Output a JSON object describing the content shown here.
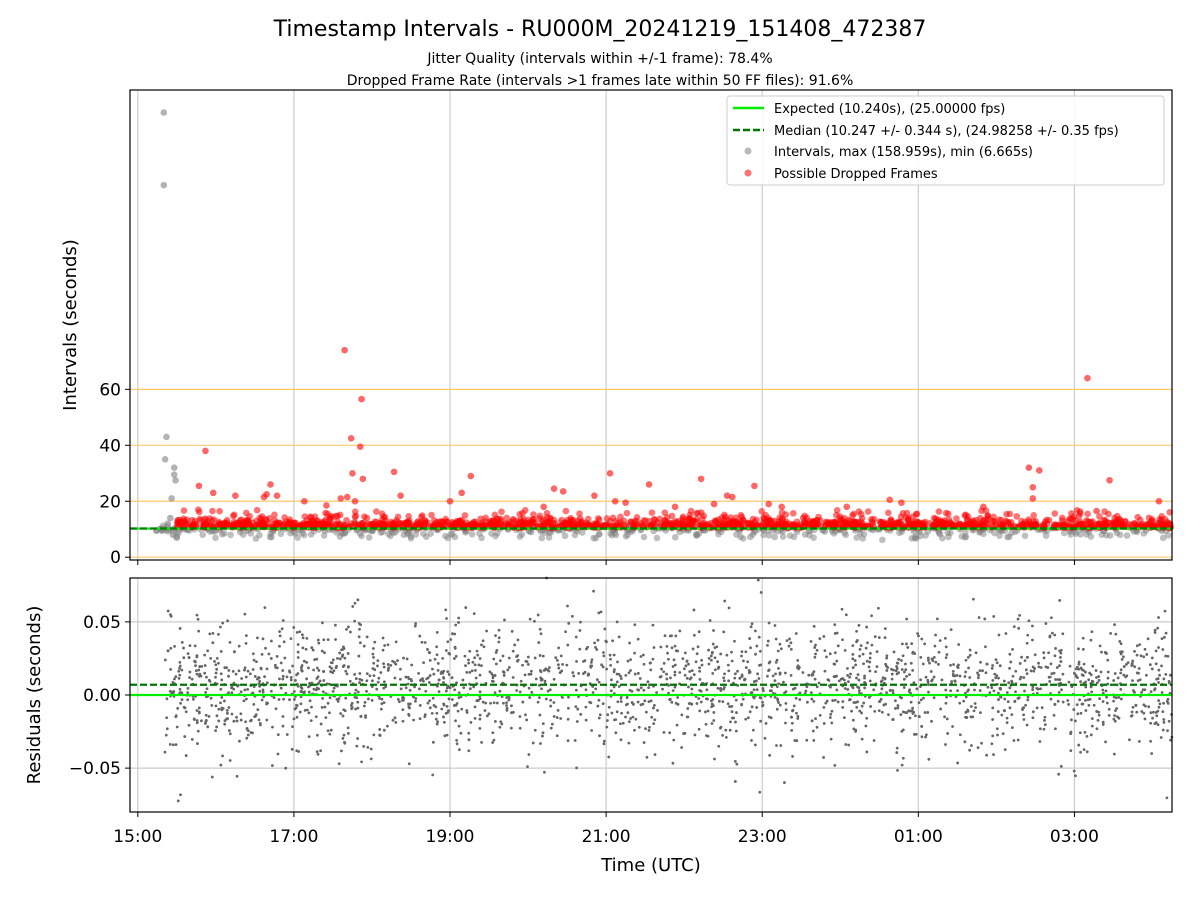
{
  "title": "Timestamp Intervals - RU000M_20241219_151408_472387",
  "subtitle1": "Jitter Quality (intervals within +/-1 frame): 78.4%",
  "subtitle2": "Dropped Frame Rate (intervals >1 frames late within 50 FF files): 91.6%",
  "colors": {
    "expected": "#00ee00",
    "median": "#007700",
    "intervals": "#808080",
    "dropped": "#ff0000",
    "ref_lines": "#ffc966",
    "residuals": "#666666",
    "grid": "#cccccc"
  },
  "chart_data": [
    {
      "type": "scatter",
      "panel": "top",
      "ylabel": "Intervals (seconds)",
      "xlabel": "",
      "x_axis": "time (UTC)",
      "xlim": [
        "2024-12-19 14:54",
        "2024-12-20 04:15"
      ],
      "ylim": [
        -1,
        167
      ],
      "yticks": [
        0,
        20,
        40,
        60
      ],
      "xticks": [
        "15:00",
        "17:00",
        "19:00",
        "21:00",
        "23:00",
        "01:00",
        "03:00"
      ],
      "horizontal_reference_lines": [
        0,
        20,
        40,
        60
      ],
      "grid": "vertical",
      "legend_position": "top-right",
      "legend": [
        "Expected (10.240s), (25.00000 fps)",
        "Median (10.247 +/- 0.344 s), (24.98258 +/- 0.35 fps)",
        "Intervals, max (158.959s), min (6.665s)",
        "Possible Dropped Frames"
      ],
      "series": [
        {
          "name": "Expected (10.240s), (25.00000 fps)",
          "kind": "line",
          "style": "solid",
          "y": 10.24
        },
        {
          "name": "Median (10.247 +/- 0.344 s), (24.98258 +/- 0.35 fps)",
          "kind": "line",
          "style": "dashed",
          "y": 10.247
        },
        {
          "name": "Intervals, max (158.959s), min (6.665s)",
          "kind": "scatter",
          "summary": {
            "x_range": [
              "15:14",
              "04:15"
            ],
            "typical_y": 10.24,
            "min": 6.665,
            "max": 158.959
          },
          "notable_points": [
            {
              "x": "15:20",
              "y": 158.959
            },
            {
              "x": "15:20",
              "y": 133
            },
            {
              "x": "15:22",
              "y": 43
            },
            {
              "x": "15:21",
              "y": 35
            },
            {
              "x": "15:28",
              "y": 32
            },
            {
              "x": "15:28",
              "y": 29.5
            },
            {
              "x": "15:29",
              "y": 27.5
            },
            {
              "x": "15:26",
              "y": 21
            },
            {
              "x": "15:25",
              "y": 14
            },
            {
              "x": "15:23",
              "y": 12
            },
            {
              "x": "15:18",
              "y": 10.2
            },
            {
              "x": "15:27",
              "y": 8
            },
            {
              "x": "15:30",
              "y": 7
            }
          ]
        },
        {
          "name": "Possible Dropped Frames",
          "kind": "scatter",
          "summary": {
            "x_range": [
              "15:30",
              "04:15"
            ],
            "typical_y": 10.5
          },
          "notable_points": [
            {
              "x": "17:39",
              "y": 74
            },
            {
              "x": "03:10",
              "y": 64
            },
            {
              "x": "17:52",
              "y": 56.5
            },
            {
              "x": "17:44",
              "y": 42.5
            },
            {
              "x": "17:51",
              "y": 39.5
            },
            {
              "x": "15:52",
              "y": 38
            },
            {
              "x": "02:25",
              "y": 32
            },
            {
              "x": "02:33",
              "y": 31
            },
            {
              "x": "18:17",
              "y": 30.5
            },
            {
              "x": "17:45",
              "y": 30
            },
            {
              "x": "21:03",
              "y": 30
            },
            {
              "x": "19:16",
              "y": 29
            },
            {
              "x": "17:53",
              "y": 28
            },
            {
              "x": "22:13",
              "y": 28
            },
            {
              "x": "03:27",
              "y": 27.5
            },
            {
              "x": "16:42",
              "y": 26
            },
            {
              "x": "21:33",
              "y": 26
            },
            {
              "x": "02:28",
              "y": 25
            },
            {
              "x": "22:54",
              "y": 25.5
            },
            {
              "x": "15:47",
              "y": 25.5
            },
            {
              "x": "20:20",
              "y": 24.5
            },
            {
              "x": "20:27",
              "y": 23.5
            },
            {
              "x": "15:58",
              "y": 23
            },
            {
              "x": "19:09",
              "y": 23
            },
            {
              "x": "16:39",
              "y": 22.5
            },
            {
              "x": "16:47",
              "y": 22
            },
            {
              "x": "22:33",
              "y": 22
            },
            {
              "x": "16:15",
              "y": 22
            },
            {
              "x": "16:37",
              "y": 21.5
            },
            {
              "x": "20:51",
              "y": 22
            },
            {
              "x": "22:37",
              "y": 21.5
            },
            {
              "x": "18:22",
              "y": 22
            },
            {
              "x": "17:41",
              "y": 21.5
            },
            {
              "x": "00:38",
              "y": 20.5
            },
            {
              "x": "04:05",
              "y": 20
            },
            {
              "x": "19:00",
              "y": 20
            },
            {
              "x": "02:28",
              "y": 21
            },
            {
              "x": "21:07",
              "y": 20
            },
            {
              "x": "17:47",
              "y": 20
            },
            {
              "x": "17:36",
              "y": 21
            },
            {
              "x": "21:15",
              "y": 19.5
            },
            {
              "x": "23:05",
              "y": 19
            },
            {
              "x": "00:47",
              "y": 19.5
            },
            {
              "x": "17:08",
              "y": 20
            },
            {
              "x": "22:23",
              "y": 19
            },
            {
              "x": "21:53",
              "y": 18
            },
            {
              "x": "01:50",
              "y": 18
            },
            {
              "x": "20:12",
              "y": 18
            },
            {
              "x": "23:15",
              "y": 18
            },
            {
              "x": "17:25",
              "y": 18.5
            },
            {
              "x": "00:05",
              "y": 18
            },
            {
              "x": "03:17",
              "y": 16.5
            }
          ]
        }
      ]
    },
    {
      "type": "scatter",
      "panel": "bottom",
      "ylabel": "Residuals (seconds)",
      "xlabel": "Time (UTC)",
      "x_axis": "time (UTC)",
      "xlim": [
        "2024-12-19 14:54",
        "2024-12-20 04:15"
      ],
      "ylim": [
        -0.08,
        0.08
      ],
      "yticks": [
        -0.05,
        0.0,
        0.05
      ],
      "ytick_labels": [
        "−0.05",
        "0.00",
        "0.05"
      ],
      "xticks": [
        "15:00",
        "17:00",
        "19:00",
        "21:00",
        "23:00",
        "01:00",
        "03:00"
      ],
      "grid": "both",
      "series": [
        {
          "name": "Expected (10.240s), (25.00000 fps)",
          "kind": "line",
          "style": "solid",
          "y": 0.0
        },
        {
          "name": "Median (10.247 +/- 0.344 s), (24.98258 +/- 0.35 fps)",
          "kind": "line",
          "style": "dashed",
          "y": 0.007
        },
        {
          "name": "Residuals",
          "kind": "scatter",
          "summary": {
            "x_range": [
              "15:20",
              "04:15"
            ],
            "center": 0.007,
            "typical_spread": 0.03,
            "range": [
              -0.08,
              0.08
            ],
            "approx_points": 2300
          }
        }
      ]
    }
  ]
}
